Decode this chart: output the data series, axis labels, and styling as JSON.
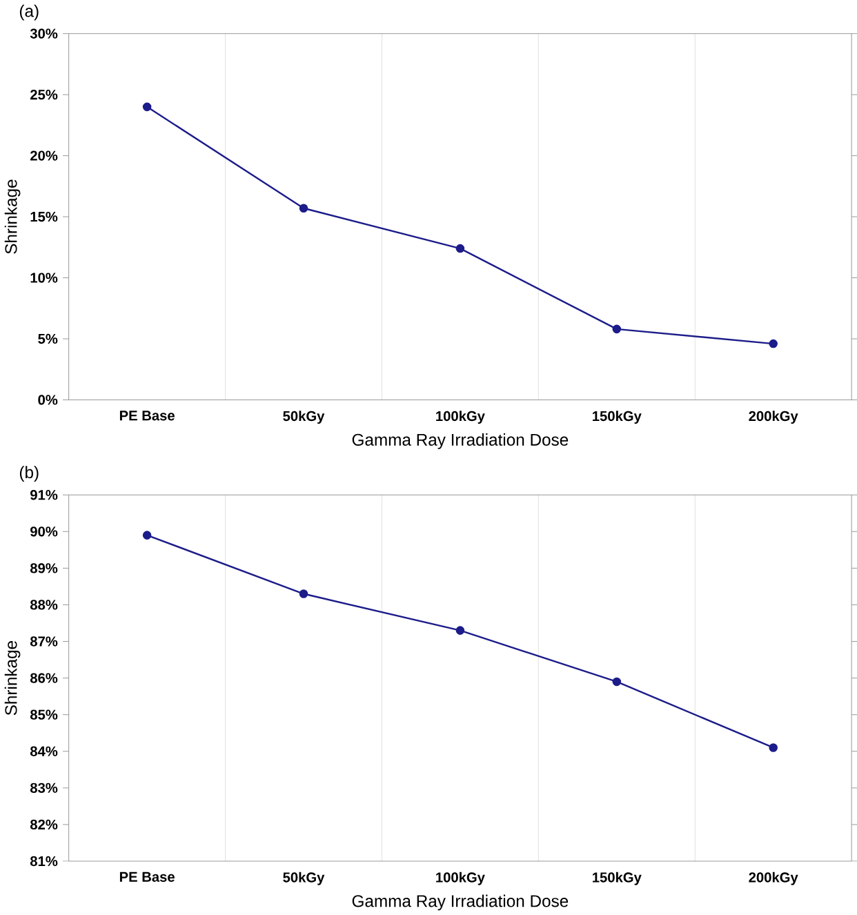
{
  "chart_data": [
    {
      "type": "line",
      "title": "(a)",
      "xlabel": "Gamma Ray Irradiation Dose",
      "ylabel": "Shrinkage",
      "categories": [
        "PE Base",
        "50kGy",
        "100kGy",
        "150kGy",
        "200kGy"
      ],
      "series": [
        {
          "color": "#1c1c8a",
          "values": [
            24.0,
            15.7,
            12.4,
            5.8,
            4.6
          ]
        }
      ],
      "ylim": [
        0,
        30
      ],
      "yticks": [
        {
          "value": 0,
          "label": "0%"
        },
        {
          "value": 5,
          "label": "5%"
        },
        {
          "value": 10,
          "label": "10%"
        },
        {
          "value": 15,
          "label": "15%"
        },
        {
          "value": 20,
          "label": "20%"
        },
        {
          "value": 25,
          "label": "25%"
        },
        {
          "value": 30,
          "label": "30%"
        }
      ],
      "grid": "x",
      "marker": "circle",
      "line_style": "solid"
    },
    {
      "type": "line",
      "title": "(b)",
      "xlabel": "Gamma Ray Irradiation Dose",
      "ylabel": "Shrinkage",
      "categories": [
        "PE Base",
        "50kGy",
        "100kGy",
        "150kGy",
        "200kGy"
      ],
      "series": [
        {
          "color": "#1c1c8a",
          "values": [
            89.9,
            88.3,
            87.3,
            85.9,
            84.1
          ]
        }
      ],
      "ylim": [
        81,
        91
      ],
      "yticks": [
        {
          "value": 81,
          "label": "81%"
        },
        {
          "value": 82,
          "label": "82%"
        },
        {
          "value": 83,
          "label": "83%"
        },
        {
          "value": 84,
          "label": "84%"
        },
        {
          "value": 85,
          "label": "85%"
        },
        {
          "value": 86,
          "label": "86%"
        },
        {
          "value": 87,
          "label": "87%"
        },
        {
          "value": 88,
          "label": "88%"
        },
        {
          "value": 89,
          "label": "89%"
        },
        {
          "value": 90,
          "label": "90%"
        },
        {
          "value": 91,
          "label": "91%"
        }
      ],
      "grid": "x",
      "marker": "circle",
      "line_style": "solid"
    }
  ]
}
